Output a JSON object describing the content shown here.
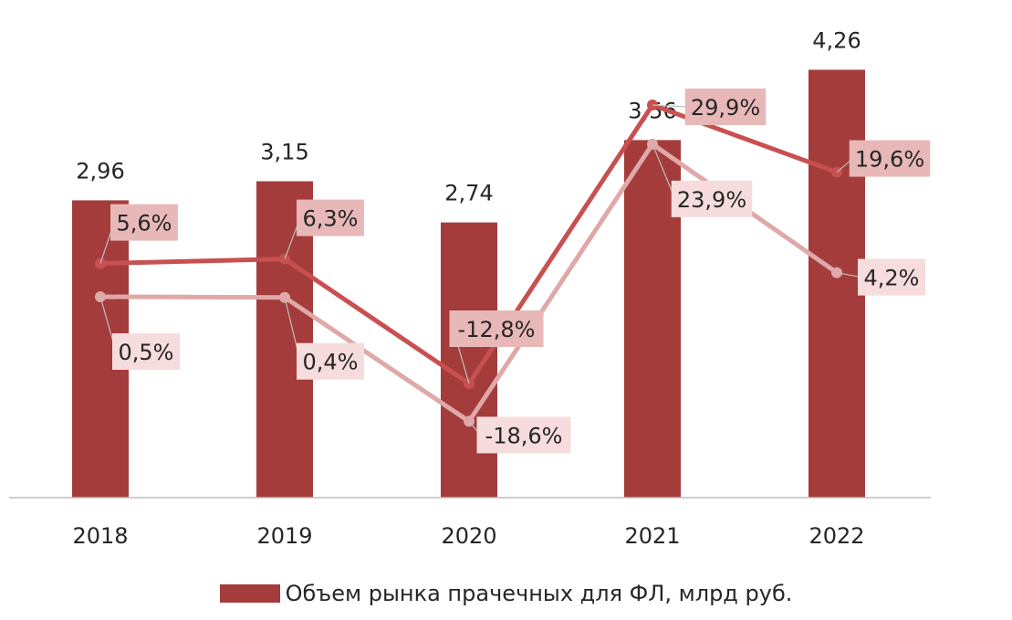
{
  "colors": {
    "bar": "#A43C3C",
    "line_dark": "#C85050",
    "line_light": "#E0A8A8",
    "label_box_dark": "#E8B8B8",
    "label_box_light": "#F6DCDC",
    "axis": "#BFBFBF",
    "text": "#262626"
  },
  "chart_data": {
    "type": "bar",
    "categories": [
      "2018",
      "2019",
      "2020",
      "2021",
      "2022"
    ],
    "values": [
      2.96,
      3.15,
      2.74,
      3.56,
      4.26
    ],
    "value_labels": [
      "2,96",
      "3,15",
      "2,74",
      "3,56",
      "4,26"
    ],
    "series": [
      {
        "name": "Объем рынка прачечных для ФЛ, млрд руб.",
        "type": "bar",
        "values": [
          2.96,
          3.15,
          2.74,
          3.56,
          4.26
        ]
      },
      {
        "type": "line",
        "values": [
          5.6,
          6.3,
          -12.8,
          29.9,
          19.6
        ],
        "labels": [
          "5,6%",
          "6,3%",
          "-12,8%",
          "29,9%",
          "19,6%"
        ]
      },
      {
        "type": "line",
        "values": [
          0.5,
          0.4,
          -18.6,
          23.9,
          4.2
        ],
        "labels": [
          "0,5%",
          "0,4%",
          "-18,6%",
          "23,9%",
          "4,2%"
        ]
      }
    ],
    "legend": {
      "position": "bottom",
      "label": "Объем рынка прачечных для ФЛ, млрд руб."
    },
    "grid": false
  }
}
